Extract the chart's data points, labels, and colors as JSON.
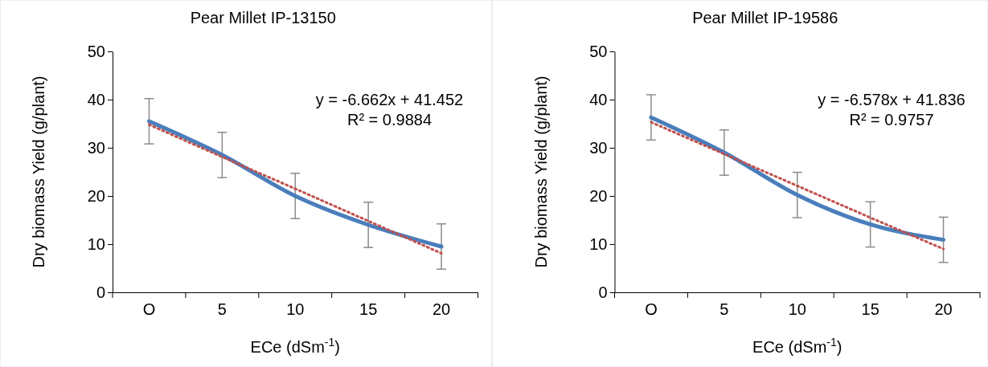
{
  "chart_data": [
    {
      "type": "line",
      "title": "Pear Millet IP-13150",
      "xlabel": "ECe (dSm$^{-1}$)",
      "ylabel": "Dry biomass Yield (g/plant)",
      "categories": [
        "O",
        "5",
        "10",
        "15",
        "20"
      ],
      "series": [
        {
          "type": "line",
          "color": "#4a7ebb",
          "values": [
            35.5,
            28.5,
            20,
            14,
            9.5
          ],
          "errors": [
            4.7,
            4.7,
            4.7,
            4.7,
            4.7
          ]
        },
        {
          "type": "line",
          "color": "#c0504d",
          "line_style": "dotted",
          "values": [
            34.8,
            28.1,
            21.5,
            14.8,
            8.1
          ]
        }
      ],
      "annotations": [
        "y = -6.662x + 41.452",
        "R² = 0.9884"
      ],
      "ylim": [
        0,
        50
      ],
      "yticks": [
        0,
        10,
        20,
        30,
        40,
        50
      ],
      "grid": false,
      "marker": "none",
      "line_style": "solid"
    },
    {
      "type": "line",
      "title": "Pear Millet IP-19586",
      "xlabel": "ECe (dSm$^{-1}$)",
      "ylabel": "Dry biomass Yield (g/plant)",
      "categories": [
        "O",
        "5",
        "10",
        "15",
        "20"
      ],
      "series": [
        {
          "type": "line",
          "color": "#4a7ebb",
          "values": [
            36.3,
            29,
            20.2,
            14.1,
            10.9
          ],
          "errors": [
            4.7,
            4.7,
            4.7,
            4.7,
            4.7
          ]
        },
        {
          "type": "line",
          "color": "#c0504d",
          "line_style": "dotted",
          "values": [
            35.3,
            28.7,
            22.1,
            15.5,
            9.0
          ]
        }
      ],
      "annotations": [
        "y = -6.578x + 41.836",
        "R² = 0.9757"
      ],
      "ylim": [
        0,
        50
      ],
      "yticks": [
        0,
        10,
        20,
        30,
        40,
        50
      ],
      "grid": false,
      "marker": "none",
      "line_style": "solid"
    }
  ]
}
